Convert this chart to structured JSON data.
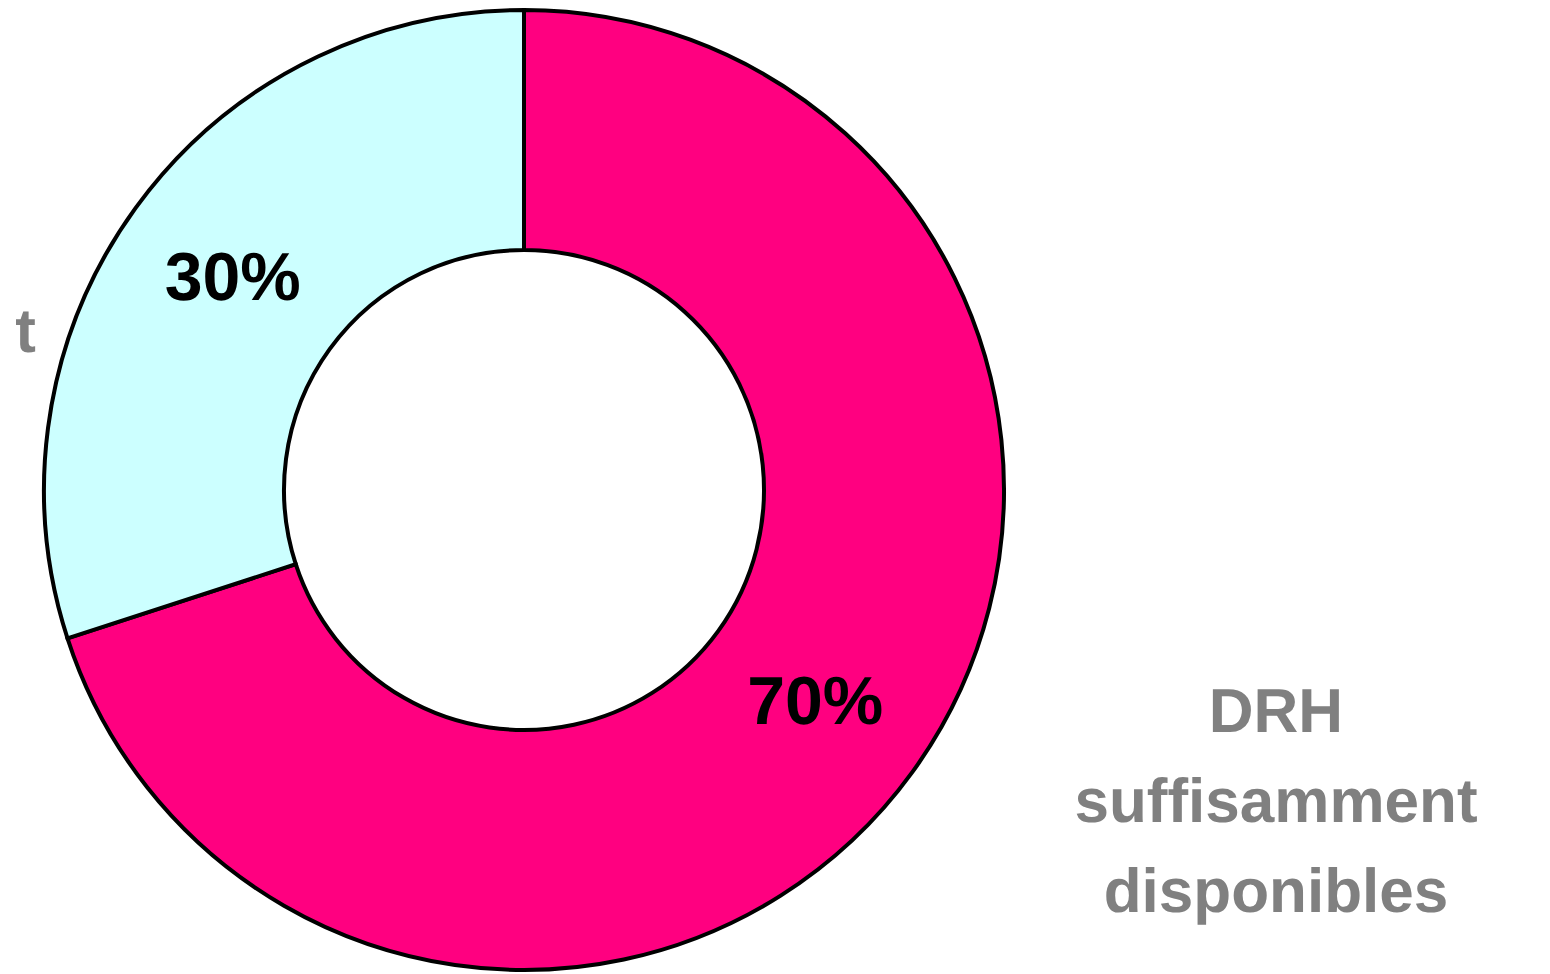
{
  "chart_data": {
    "type": "donut",
    "categories": [
      "DRH suffisamment disponibles",
      "t"
    ],
    "values": [
      70,
      30
    ],
    "colors": [
      "#ff0080",
      "#ccffff"
    ],
    "value_labels": [
      "70%",
      "30%"
    ]
  }
}
